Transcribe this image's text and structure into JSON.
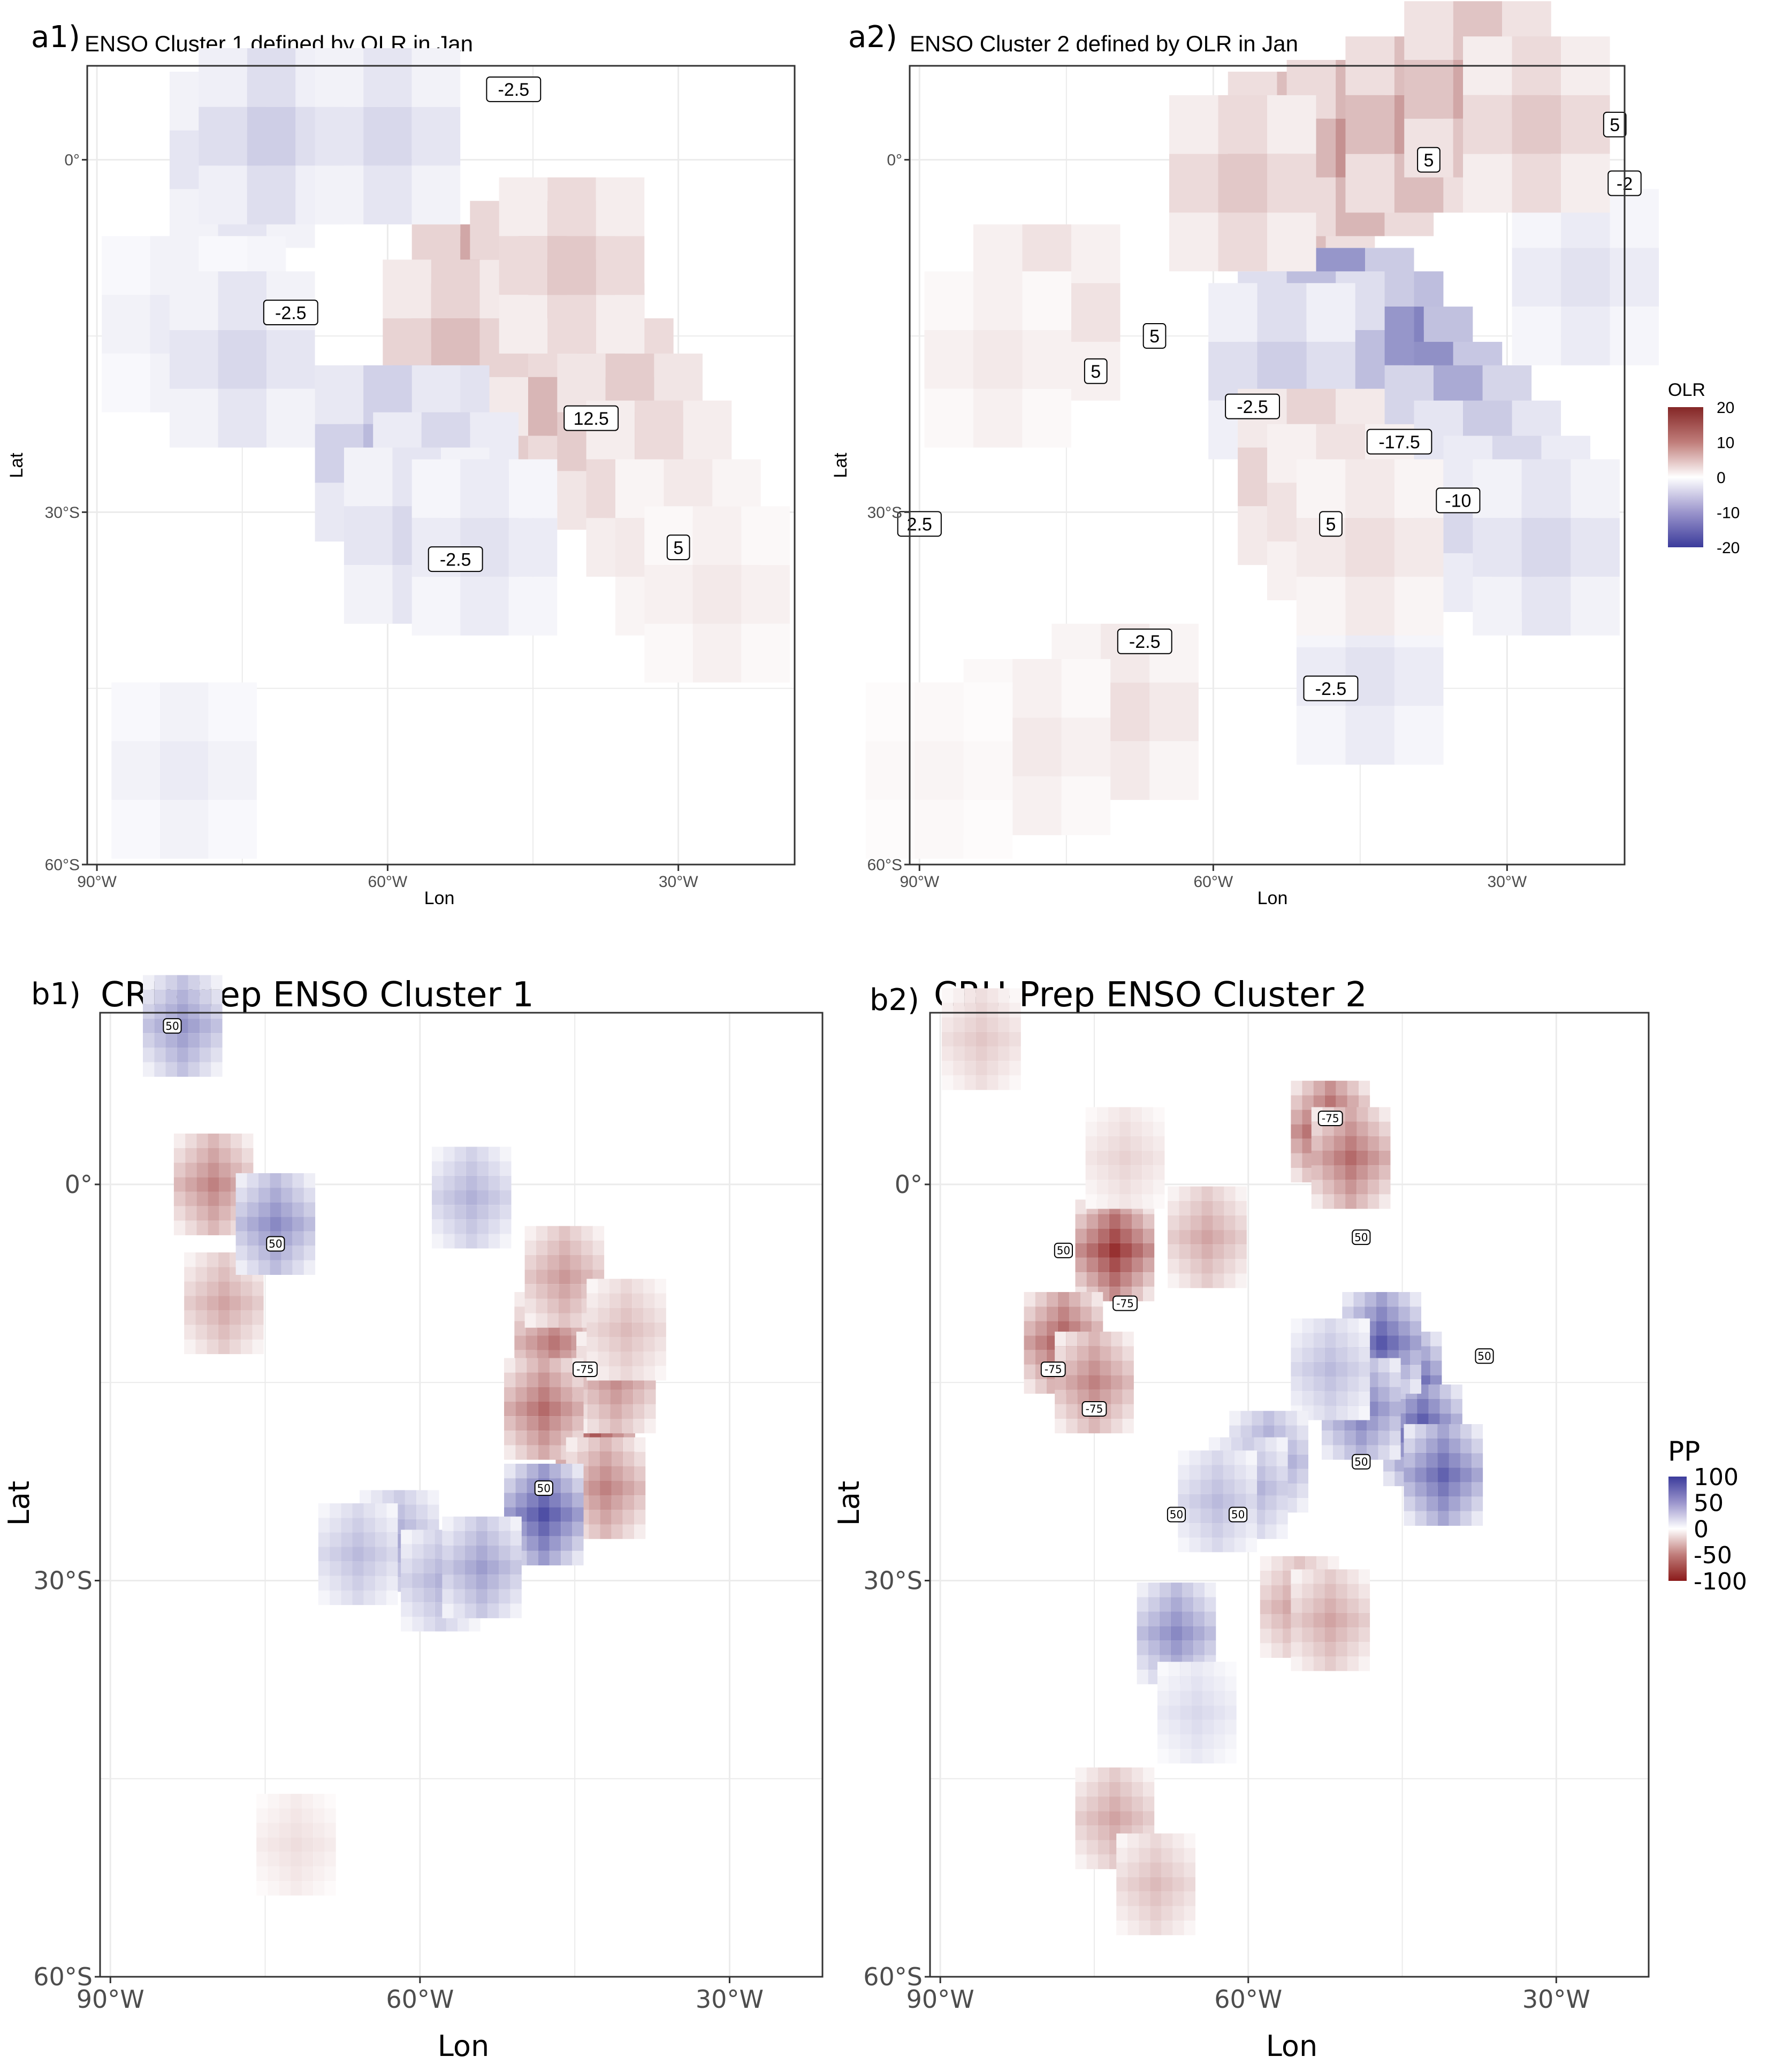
{
  "chart_data": [
    {
      "id": "a1",
      "type": "heatmap",
      "tag": "a1)",
      "title": "ENSO Cluster 1 defined by OLR in Jan",
      "xlabel": "Lon",
      "ylabel": "Lat",
      "xlim": [
        -91,
        -18
      ],
      "ylim": [
        -60,
        8
      ],
      "x_ticks": [
        {
          "value": -90,
          "label": "90°W"
        },
        {
          "value": -60,
          "label": "60°W"
        },
        {
          "value": -30,
          "label": "30°W"
        }
      ],
      "y_ticks": [
        {
          "value": 0,
          "label": "0°"
        },
        {
          "value": -30,
          "label": "30°S"
        },
        {
          "value": -60,
          "label": "60°S"
        }
      ],
      "grid": true,
      "variable": "OLR",
      "color_scale": {
        "min": -20,
        "max": 20,
        "neg_color": "#3b3b9b",
        "mid_color": "#ffffff",
        "pos_color": "#8b2323"
      },
      "cells": [
        {
          "lon": -47,
          "lat": -14,
          "value": 17
        },
        {
          "lon": -44,
          "lat": -16,
          "value": 18
        },
        {
          "lon": -41,
          "lat": -18,
          "value": 14
        },
        {
          "lon": -50,
          "lat": -13,
          "value": 12
        },
        {
          "lon": -44,
          "lat": -11,
          "value": 11
        },
        {
          "lon": -38,
          "lat": -21,
          "value": 10
        },
        {
          "lon": -35,
          "lat": -24,
          "value": 7
        },
        {
          "lon": -32,
          "lat": -28,
          "value": 5
        },
        {
          "lon": -29,
          "lat": -33,
          "value": 3
        },
        {
          "lon": -53,
          "lat": -16,
          "value": 6
        },
        {
          "lon": -41,
          "lat": -9,
          "value": 5
        },
        {
          "lon": -26,
          "lat": -37,
          "value": 2
        },
        {
          "lon": -57,
          "lat": -25,
          "value": -9
        },
        {
          "lon": -60,
          "lat": -25,
          "value": -7
        },
        {
          "lon": -54,
          "lat": -29,
          "value": -6
        },
        {
          "lon": -57,
          "lat": -32,
          "value": -4
        },
        {
          "lon": -50,
          "lat": -33,
          "value": -3
        },
        {
          "lon": -75,
          "lat": 0,
          "value": -4
        },
        {
          "lon": -72,
          "lat": 2,
          "value": -5
        },
        {
          "lon": -60,
          "lat": 2,
          "value": -4
        },
        {
          "lon": -78,
          "lat": -14,
          "value": -3
        },
        {
          "lon": -82,
          "lat": -14,
          "value": -2
        },
        {
          "lon": -75,
          "lat": -17,
          "value": -4
        },
        {
          "lon": -81,
          "lat": -52,
          "value": -2
        }
      ],
      "contour_labels": [
        {
          "lon": -47,
          "lat": 6,
          "label": "-2.5"
        },
        {
          "lon": -70,
          "lat": -13,
          "label": "-2.5"
        },
        {
          "lon": -39,
          "lat": -22,
          "label": "12.5"
        },
        {
          "lon": -30,
          "lat": -33,
          "label": "5"
        },
        {
          "lon": -53,
          "lat": -34,
          "label": "-2.5"
        }
      ]
    },
    {
      "id": "a2",
      "type": "heatmap",
      "tag": "a2)",
      "title": "ENSO Cluster 2 defined by OLR in Jan",
      "xlabel": "Lon",
      "ylabel": "Lat",
      "xlim": [
        -91,
        -18
      ],
      "ylim": [
        -60,
        8
      ],
      "x_ticks": [
        {
          "value": -90,
          "label": "90°W"
        },
        {
          "value": -60,
          "label": "60°W"
        },
        {
          "value": -30,
          "label": "30°W"
        }
      ],
      "y_ticks": [
        {
          "value": 0,
          "label": "0°"
        },
        {
          "value": -30,
          "label": "30°S"
        },
        {
          "value": -60,
          "label": "60°S"
        }
      ],
      "grid": true,
      "variable": "OLR",
      "legend": {
        "title": "OLR",
        "ticks": [
          "20",
          "10",
          "0",
          "-10",
          "-20"
        ],
        "values": [
          20,
          10,
          0,
          -10,
          -20
        ],
        "position": "right"
      },
      "color_scale": {
        "min": -20,
        "max": 20,
        "neg_color": "#3b3b9b",
        "mid_color": "#ffffff",
        "pos_color": "#8b2323"
      },
      "cells": [
        {
          "lon": -44,
          "lat": -17,
          "value": -20
        },
        {
          "lon": -41,
          "lat": -20,
          "value": -19
        },
        {
          "lon": -38,
          "lat": -23,
          "value": -17
        },
        {
          "lon": -47,
          "lat": -15,
          "value": -16
        },
        {
          "lon": -35,
          "lat": -25,
          "value": -13
        },
        {
          "lon": -50,
          "lat": -17,
          "value": -10
        },
        {
          "lon": -32,
          "lat": -28,
          "value": -8
        },
        {
          "lon": -29,
          "lat": -31,
          "value": -6
        },
        {
          "lon": -26,
          "lat": -33,
          "value": -4
        },
        {
          "lon": -53,
          "lat": -18,
          "value": -5
        },
        {
          "lon": -22,
          "lat": -10,
          "value": -3
        },
        {
          "lon": -44,
          "lat": -44,
          "value": -3
        },
        {
          "lon": -51,
          "lat": 0,
          "value": 9
        },
        {
          "lon": -45,
          "lat": 1,
          "value": 10
        },
        {
          "lon": -39,
          "lat": 3,
          "value": 9
        },
        {
          "lon": -33,
          "lat": 6,
          "value": 8
        },
        {
          "lon": -27,
          "lat": 3,
          "value": 5
        },
        {
          "lon": -57,
          "lat": -2,
          "value": 5
        },
        {
          "lon": -50,
          "lat": -27,
          "value": 6
        },
        {
          "lon": -47,
          "lat": -30,
          "value": 4
        },
        {
          "lon": -44,
          "lat": -33,
          "value": 3
        },
        {
          "lon": -77,
          "lat": -13,
          "value": 4
        },
        {
          "lon": -82,
          "lat": -17,
          "value": 2
        },
        {
          "lon": -69,
          "lat": -47,
          "value": 3
        },
        {
          "lon": -78,
          "lat": -50,
          "value": 2
        },
        {
          "lon": -88,
          "lat": -52,
          "value": 1
        }
      ],
      "contour_labels": [
        {
          "lon": -19,
          "lat": 3,
          "label": "5"
        },
        {
          "lon": -38,
          "lat": 0,
          "label": "5"
        },
        {
          "lon": -18,
          "lat": -2,
          "label": "-2"
        },
        {
          "lon": -66,
          "lat": -15,
          "label": "5"
        },
        {
          "lon": -72,
          "lat": -18,
          "label": "5"
        },
        {
          "lon": -56,
          "lat": -21,
          "label": "-2.5"
        },
        {
          "lon": -41,
          "lat": -24,
          "label": "-17.5"
        },
        {
          "lon": -35,
          "lat": -29,
          "label": "-10"
        },
        {
          "lon": -48,
          "lat": -31,
          "label": "5"
        },
        {
          "lon": -90,
          "lat": -31,
          "label": "2.5"
        },
        {
          "lon": -67,
          "lat": -41,
          "label": "-2.5"
        },
        {
          "lon": -48,
          "lat": -45,
          "label": "-2.5"
        }
      ]
    },
    {
      "id": "b1",
      "type": "heatmap",
      "tag": "b1)",
      "title": "CRU-Prep ENSO Cluster 1",
      "xlabel": "Lon",
      "ylabel": "Lat",
      "xlim": [
        -91,
        -21
      ],
      "ylim": [
        -60,
        13
      ],
      "x_ticks": [
        {
          "value": -90,
          "label": "90°W"
        },
        {
          "value": -60,
          "label": "60°W"
        },
        {
          "value": -30,
          "label": "30°W"
        }
      ],
      "y_ticks": [
        {
          "value": 0,
          "label": "0°"
        },
        {
          "value": -30,
          "label": "30°S"
        },
        {
          "value": -60,
          "label": "60°S"
        }
      ],
      "grid": true,
      "variable": "PP",
      "color_scale": {
        "min": -100,
        "max": 100,
        "neg_color": "#8b1a1a",
        "mid_color": "#ffffff",
        "pos_color": "#3b3b9b"
      },
      "cells": [
        {
          "lon": -44,
          "lat": -17,
          "value": -95
        },
        {
          "lon": -45,
          "lat": -14,
          "value": -80
        },
        {
          "lon": -43,
          "lat": -20,
          "value": -85
        },
        {
          "lon": -47,
          "lat": -12,
          "value": -60
        },
        {
          "lon": -46,
          "lat": -7,
          "value": -45
        },
        {
          "lon": -41,
          "lat": -15,
          "value": -50
        },
        {
          "lon": -40,
          "lat": -11,
          "value": -30
        },
        {
          "lon": -48,
          "lat": -17,
          "value": -65
        },
        {
          "lon": -42,
          "lat": -23,
          "value": -55
        },
        {
          "lon": -79,
          "lat": -9,
          "value": -40
        },
        {
          "lon": -80,
          "lat": 0,
          "value": -55
        },
        {
          "lon": -74,
          "lat": -3,
          "value": 60
        },
        {
          "lon": -55,
          "lat": -1,
          "value": 40
        },
        {
          "lon": -48,
          "lat": -25,
          "value": 90
        },
        {
          "lon": -62,
          "lat": -27,
          "value": 45
        },
        {
          "lon": -58,
          "lat": -30,
          "value": 40
        },
        {
          "lon": -54,
          "lat": -29,
          "value": 50
        },
        {
          "lon": -66,
          "lat": -28,
          "value": 35
        },
        {
          "lon": -83,
          "lat": 12,
          "value": 55
        },
        {
          "lon": -72,
          "lat": -50,
          "value": -15
        }
      ],
      "contour_labels": [
        {
          "lon": -84,
          "lat": 12,
          "label": "50"
        },
        {
          "lon": -74,
          "lat": -4.5,
          "label": "50"
        },
        {
          "lon": -44,
          "lat": -14,
          "label": "-75"
        },
        {
          "lon": -48,
          "lat": -23,
          "label": "50"
        }
      ]
    },
    {
      "id": "b2",
      "type": "heatmap",
      "tag": "b2)",
      "title": "CRU-Prep ENSO Cluster 2",
      "xlabel": "Lon",
      "ylabel": "Lat",
      "xlim": [
        -91,
        -21
      ],
      "ylim": [
        -60,
        13
      ],
      "x_ticks": [
        {
          "value": -90,
          "label": "90°W"
        },
        {
          "value": -60,
          "label": "60°W"
        },
        {
          "value": -30,
          "label": "30°W"
        }
      ],
      "y_ticks": [
        {
          "value": 0,
          "label": "0°"
        },
        {
          "value": -30,
          "label": "30°S"
        },
        {
          "value": -60,
          "label": "60°S"
        }
      ],
      "grid": true,
      "variable": "PP",
      "legend": {
        "title": "PP",
        "ticks": [
          "100",
          "50",
          "0",
          "-50",
          "-100"
        ],
        "values": [
          100,
          50,
          0,
          -50,
          -100
        ],
        "position": "right"
      },
      "color_scale": {
        "min": -100,
        "max": 100,
        "neg_color": "#8b1a1a",
        "mid_color": "#ffffff",
        "pos_color": "#3b3b9b"
      },
      "cells": [
        {
          "lon": -45,
          "lat": -15,
          "value": 100
        },
        {
          "lon": -43,
          "lat": -19,
          "value": 95
        },
        {
          "lon": -47,
          "lat": -12,
          "value": 85
        },
        {
          "lon": -49,
          "lat": -17,
          "value": 70
        },
        {
          "lon": -41,
          "lat": -22,
          "value": 80
        },
        {
          "lon": -52,
          "lat": -14,
          "value": 35
        },
        {
          "lon": -58,
          "lat": -21,
          "value": 55
        },
        {
          "lon": -60,
          "lat": -23,
          "value": 45
        },
        {
          "lon": -63,
          "lat": -24,
          "value": 35
        },
        {
          "lon": -67,
          "lat": -34,
          "value": 60
        },
        {
          "lon": -65,
          "lat": -40,
          "value": 20
        },
        {
          "lon": -52,
          "lat": 4,
          "value": -85
        },
        {
          "lon": -50,
          "lat": 2,
          "value": -65
        },
        {
          "lon": -73,
          "lat": -5,
          "value": -90
        },
        {
          "lon": -78,
          "lat": -12,
          "value": -75
        },
        {
          "lon": -75,
          "lat": -15,
          "value": -55
        },
        {
          "lon": -72,
          "lat": 2,
          "value": -20
        },
        {
          "lon": -64,
          "lat": -4,
          "value": -40
        },
        {
          "lon": -55,
          "lat": -32,
          "value": -45
        },
        {
          "lon": -52,
          "lat": -33,
          "value": -40
        },
        {
          "lon": -73,
          "lat": -48,
          "value": -40
        },
        {
          "lon": -69,
          "lat": -53,
          "value": -30
        },
        {
          "lon": -86,
          "lat": 11,
          "value": -25
        }
      ],
      "contour_labels": [
        {
          "lon": -52,
          "lat": 5,
          "label": "-75"
        },
        {
          "lon": -78,
          "lat": -5,
          "label": "50"
        },
        {
          "lon": -72,
          "lat": -9,
          "label": "-75"
        },
        {
          "lon": -49,
          "lat": -4,
          "label": "50"
        },
        {
          "lon": -79,
          "lat": -14,
          "label": "-75"
        },
        {
          "lon": -75,
          "lat": -17,
          "label": "-75"
        },
        {
          "lon": -37,
          "lat": -13,
          "label": "50"
        },
        {
          "lon": -49,
          "lat": -21,
          "label": "50"
        },
        {
          "lon": -67,
          "lat": -25,
          "label": "50"
        },
        {
          "lon": -61,
          "lat": -25,
          "label": "50"
        }
      ]
    }
  ]
}
